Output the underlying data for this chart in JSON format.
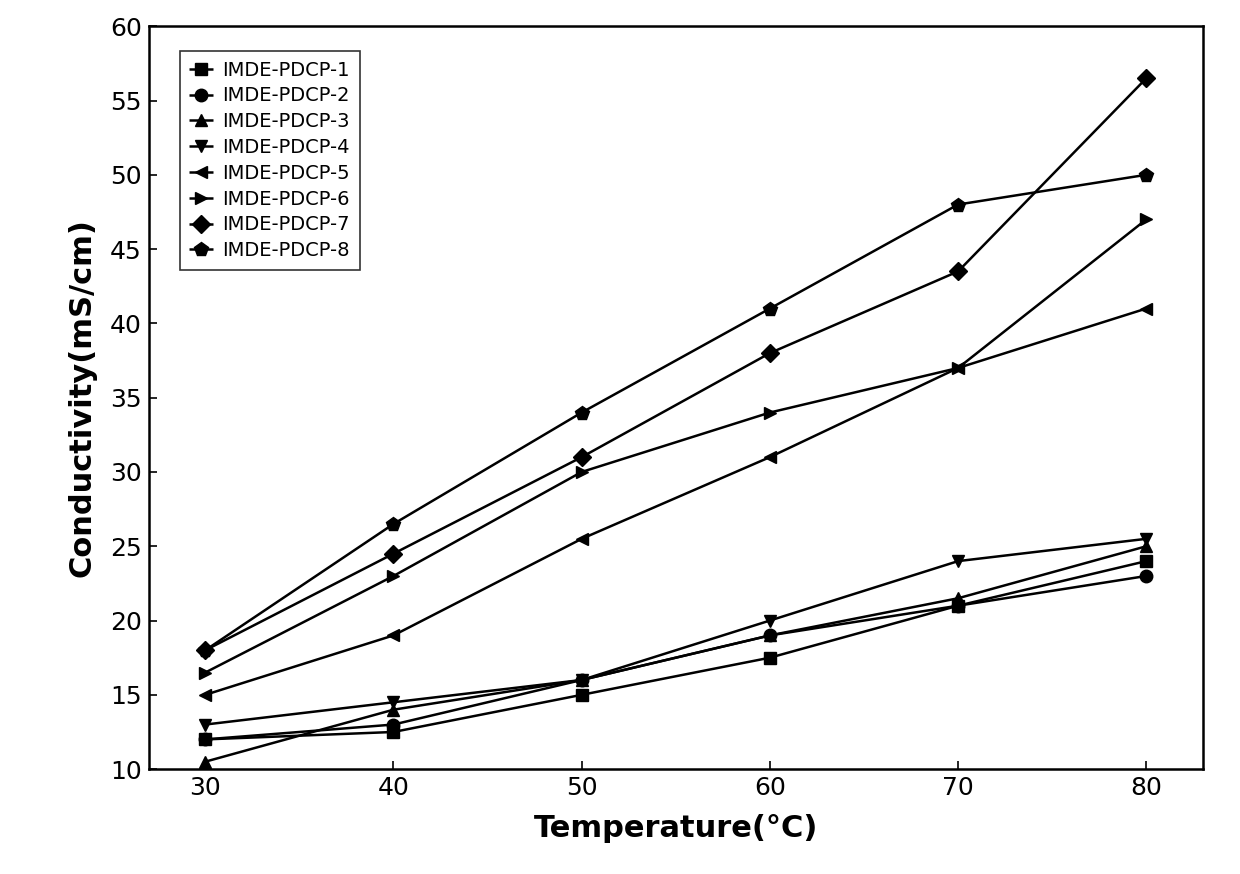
{
  "x": [
    30,
    40,
    50,
    60,
    70,
    80
  ],
  "series": [
    {
      "label": "IMDE-PDCP-1",
      "y": [
        12.0,
        12.5,
        15.0,
        17.5,
        21.0,
        24.0
      ],
      "marker": "s",
      "markersize": 9
    },
    {
      "label": "IMDE-PDCP-2",
      "y": [
        12.0,
        13.0,
        16.0,
        19.0,
        21.0,
        23.0
      ],
      "marker": "o",
      "markersize": 9
    },
    {
      "label": "IMDE-PDCP-3",
      "y": [
        10.5,
        14.0,
        16.0,
        19.0,
        21.5,
        25.0
      ],
      "marker": "^",
      "markersize": 9
    },
    {
      "label": "IMDE-PDCP-4",
      "y": [
        13.0,
        14.5,
        16.0,
        20.0,
        24.0,
        25.5
      ],
      "marker": "v",
      "markersize": 9
    },
    {
      "label": "IMDE-PDCP-5",
      "y": [
        15.0,
        19.0,
        25.5,
        31.0,
        37.0,
        41.0
      ],
      "marker": "<",
      "markersize": 9
    },
    {
      "label": "IMDE-PDCP-6",
      "y": [
        16.5,
        23.0,
        30.0,
        34.0,
        37.0,
        47.0
      ],
      "marker": ">",
      "markersize": 9
    },
    {
      "label": "IMDE-PDCP-7",
      "y": [
        18.0,
        24.5,
        31.0,
        38.0,
        43.5,
        56.5
      ],
      "marker": "D",
      "markersize": 9
    },
    {
      "label": "IMDE-PDCP-8",
      "y": [
        18.0,
        26.5,
        34.0,
        41.0,
        48.0,
        50.0
      ],
      "marker": "p",
      "markersize": 10
    }
  ],
  "color": "#000000",
  "xlabel": "Temperature(°C)",
  "ylabel": "Conductivity(mS/cm)",
  "xlim": [
    27,
    83
  ],
  "ylim": [
    10,
    60
  ],
  "xticks": [
    30,
    40,
    50,
    60,
    70,
    80
  ],
  "yticks": [
    10,
    15,
    20,
    25,
    30,
    35,
    40,
    45,
    50,
    55,
    60
  ],
  "xlabel_fontsize": 22,
  "ylabel_fontsize": 22,
  "tick_fontsize": 18,
  "legend_fontsize": 14,
  "linewidth": 1.8,
  "figure_width": 12.4,
  "figure_height": 8.74,
  "figure_dpi": 100
}
